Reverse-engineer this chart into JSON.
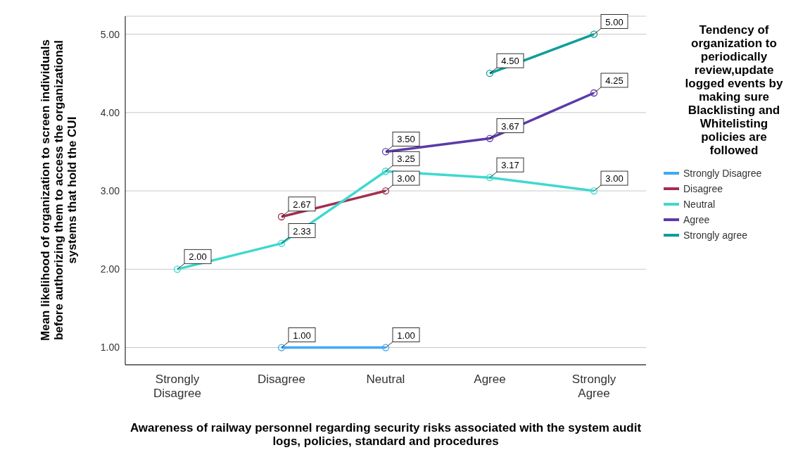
{
  "chart_data": {
    "type": "line",
    "xlabel": "Awareness of railway personnel  regarding security risks associated with the system audit logs, policies, standard and procedures",
    "ylabel": "Mean likelihood of organization to screen individuals before authorizing them to access the organizational systems that hold the CUI",
    "legend_title": "Tendency of organization to periodically review,update logged events by making sure Blacklisting and Whitelisting policies are followed",
    "categories": [
      "Strongly Disagree",
      "Disagree",
      "Neutral",
      "Agree",
      "Strongly Agree"
    ],
    "series": [
      {
        "name": "Strongly Disagree",
        "color": "#3fa9f5",
        "values": [
          null,
          1.0,
          1.0,
          null,
          null
        ],
        "value_labels": [
          null,
          "1.00",
          "1.00",
          null,
          null
        ]
      },
      {
        "name": "Disagree",
        "color": "#a0304f",
        "values": [
          null,
          2.67,
          3.0,
          null,
          null
        ],
        "value_labels": [
          null,
          "2.67",
          "3.00",
          null,
          null
        ]
      },
      {
        "name": "Neutral",
        "color": "#3fd8d0",
        "values": [
          2.0,
          2.33,
          3.25,
          3.17,
          3.0
        ],
        "value_labels": [
          "2.00",
          "2.33",
          "3.25",
          "3.17",
          "3.00"
        ]
      },
      {
        "name": "Agree",
        "color": "#5b3aa8",
        "values": [
          null,
          null,
          3.5,
          3.67,
          4.25
        ],
        "value_labels": [
          null,
          null,
          "3.50",
          "3.67",
          "4.25"
        ]
      },
      {
        "name": "Strongly agree",
        "color": "#0e9e9a",
        "values": [
          null,
          null,
          null,
          4.5,
          5.0
        ],
        "value_labels": [
          null,
          null,
          null,
          "4.50",
          "5.00"
        ]
      }
    ],
    "ylim": [
      0.78,
      5.23
    ],
    "yticks": [
      {
        "value": 1,
        "label": "1.00"
      },
      {
        "value": 2,
        "label": "2.00"
      },
      {
        "value": 3,
        "label": "3.00"
      },
      {
        "value": 4,
        "label": "4.00"
      },
      {
        "value": 5,
        "label": "5.00"
      }
    ],
    "grid": "y",
    "legend": "right",
    "marker": "circle",
    "line_style": "solid"
  }
}
